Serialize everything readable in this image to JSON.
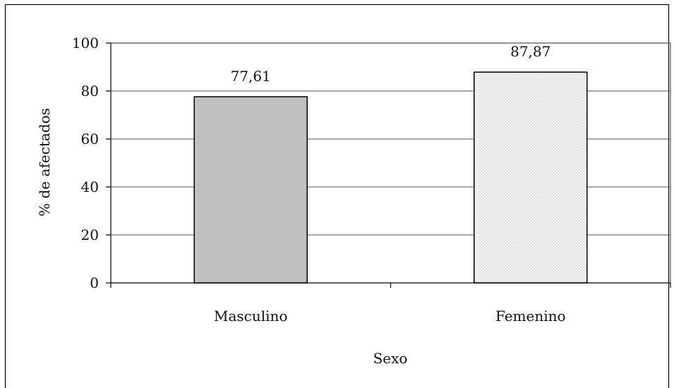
{
  "chart_data": {
    "type": "bar",
    "categories": [
      "Masculino",
      "Femenino"
    ],
    "values": [
      77.61,
      87.87
    ],
    "data_labels": [
      "77,61",
      "87,87"
    ],
    "title": "",
    "xlabel": "Sexo",
    "ylabel": "% de afectados",
    "ylim": [
      0,
      100
    ],
    "yticks": [
      0,
      20,
      40,
      60,
      80,
      100
    ],
    "grid": true,
    "legend": "none",
    "bar_styles": [
      {
        "fill": "#c0c0c0",
        "pattern": "solid"
      },
      {
        "fill": "#f2f2f2",
        "pattern": "dotted"
      }
    ]
  }
}
